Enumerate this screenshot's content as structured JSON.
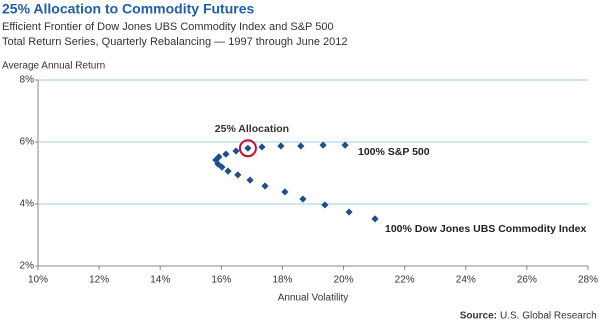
{
  "chart_data": {
    "type": "scatter",
    "title": "25% Allocation to Commodity Futures",
    "subtitle": [
      "Efficient Frontier of Dow Jones UBS Commodity Index and S&P 500",
      "Total Return Series, Quarterly Rebalancing — 1997 through June 2012"
    ],
    "y_label": "Average Annual Return",
    "x_label": "Annual Volatility",
    "source": {
      "label": "Source:",
      "text": "U.S. Global Research"
    },
    "x": [
      20.05,
      19.33,
      18.6,
      17.95,
      17.33,
      16.87,
      16.48,
      16.15,
      15.92,
      15.82,
      15.89,
      16.02,
      16.22,
      16.54,
      16.94,
      17.43,
      18.08,
      18.67,
      19.39,
      20.18,
      21.03
    ],
    "values": [
      5.9,
      5.9,
      5.87,
      5.87,
      5.84,
      5.8,
      5.71,
      5.61,
      5.52,
      5.42,
      5.29,
      5.19,
      5.06,
      4.94,
      4.77,
      4.58,
      4.39,
      4.16,
      3.97,
      3.74,
      3.52
    ],
    "color": "#1f4e8c",
    "highlight_point": 5,
    "highlight_color": "#c8102e",
    "annotations": [
      "25% Allocation",
      "100% S&P 500",
      "100% Dow Jones UBS Commodity Index"
    ],
    "xlim": [
      10,
      28
    ],
    "xticks": [
      {
        "value": 10,
        "label": "10%"
      },
      {
        "value": 12,
        "label": "12%"
      },
      {
        "value": 14,
        "label": "14%"
      },
      {
        "value": 16,
        "label": "16%"
      },
      {
        "value": 18,
        "label": "18%"
      },
      {
        "value": 20,
        "label": "20%"
      },
      {
        "value": 22,
        "label": "22%"
      },
      {
        "value": 24,
        "label": "24%"
      },
      {
        "value": 26,
        "label": "26%"
      },
      {
        "value": 28,
        "label": "28%"
      }
    ],
    "ylim": [
      2,
      8
    ],
    "yticks": [
      {
        "value": 2,
        "label": "2%"
      },
      {
        "value": 4,
        "label": "4%"
      },
      {
        "value": 6,
        "label": "6%"
      },
      {
        "value": 8,
        "label": "8%"
      }
    ],
    "grid": true
  }
}
